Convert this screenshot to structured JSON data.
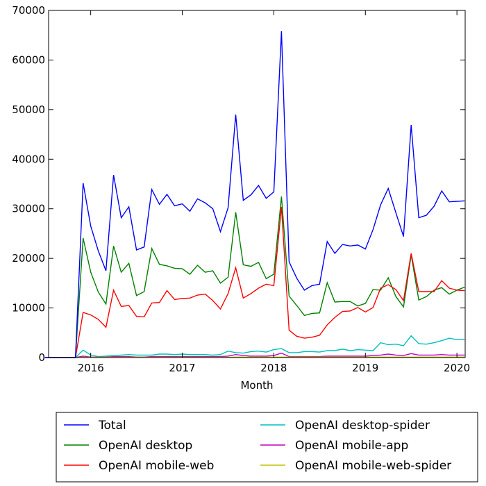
{
  "chart_data": {
    "type": "line",
    "title": "",
    "xlabel": "Month",
    "ylabel": "",
    "xlim": [
      2015.54,
      2020.09
    ],
    "ylim": [
      0,
      70000
    ],
    "xticks": [
      2016,
      2017,
      2018,
      2019,
      2020
    ],
    "xtick_labels": [
      "2016",
      "2017",
      "2018",
      "2019",
      "2020"
    ],
    "yticks": [
      0,
      10000,
      20000,
      30000,
      40000,
      50000,
      60000,
      70000
    ],
    "ytick_labels": [
      "0",
      "10000",
      "20000",
      "30000",
      "40000",
      "50000",
      "60000",
      "70000"
    ],
    "grid": false,
    "legend_position": "below",
    "x": [
      "2015-07",
      "2015-08",
      "2015-09",
      "2015-10",
      "2015-11",
      "2015-12",
      "2016-01",
      "2016-02",
      "2016-03",
      "2016-04",
      "2016-05",
      "2016-06",
      "2016-07",
      "2016-08",
      "2016-09",
      "2016-10",
      "2016-11",
      "2016-12",
      "2017-01",
      "2017-02",
      "2017-03",
      "2017-04",
      "2017-05",
      "2017-06",
      "2017-07",
      "2017-08",
      "2017-09",
      "2017-10",
      "2017-11",
      "2017-12",
      "2018-01",
      "2018-02",
      "2018-03",
      "2018-04",
      "2018-05",
      "2018-06",
      "2018-07",
      "2018-08",
      "2018-09",
      "2018-10",
      "2018-11",
      "2018-12",
      "2019-01",
      "2019-02",
      "2019-03",
      "2019-04",
      "2019-05",
      "2019-06",
      "2019-07",
      "2019-08",
      "2019-09",
      "2019-10",
      "2019-11",
      "2019-12",
      "2020-01",
      "2020-02"
    ],
    "series": [
      {
        "name": "Total",
        "color": "#0000ff",
        "values": [
          0,
          0,
          0,
          0,
          0,
          35200,
          26500,
          21500,
          17500,
          36800,
          28200,
          30400,
          21700,
          22300,
          33900,
          30900,
          32900,
          30600,
          31000,
          29500,
          32000,
          31200,
          30000,
          25400,
          30200,
          49000,
          31700,
          32800,
          34700,
          32100,
          33400,
          65800,
          19300,
          16000,
          13600,
          14500,
          14800,
          23400,
          21000,
          22800,
          22500,
          22700,
          21900,
          25800,
          30800,
          34100,
          29200,
          24400,
          46900,
          28200,
          28700,
          30500,
          33600,
          31400,
          31500,
          31600
        ]
      },
      {
        "name": "OpenAI desktop",
        "color": "#008000",
        "values": [
          0,
          0,
          0,
          0,
          0,
          24100,
          17200,
          13200,
          10800,
          22500,
          17200,
          19000,
          12500,
          13300,
          22000,
          18800,
          18500,
          18000,
          17900,
          16800,
          18600,
          17200,
          17500,
          15000,
          16200,
          29300,
          18700,
          18400,
          19200,
          15900,
          16800,
          32500,
          12400,
          10500,
          8500,
          8900,
          9000,
          15100,
          11200,
          11300,
          11300,
          10400,
          10900,
          13700,
          13600,
          16100,
          12300,
          10200,
          20700,
          11600,
          12300,
          13600,
          14100,
          12800,
          13600,
          14200
        ]
      },
      {
        "name": "OpenAI mobile-web",
        "color": "#ff0000",
        "values": [
          0,
          0,
          0,
          0,
          0,
          9100,
          8600,
          7700,
          6100,
          13600,
          10300,
          10500,
          8300,
          8200,
          11000,
          11100,
          13500,
          11700,
          11900,
          12000,
          12600,
          12800,
          11500,
          9800,
          12900,
          18100,
          12000,
          12900,
          14000,
          14800,
          14500,
          30400,
          5500,
          4300,
          3900,
          4100,
          4500,
          6600,
          8100,
          9300,
          9400,
          10100,
          9200,
          10100,
          14000,
          14700,
          13700,
          11500,
          21000,
          13300,
          13300,
          13300,
          15500,
          14000,
          13600,
          13500
        ]
      },
      {
        "name": "OpenAI desktop-spider",
        "color": "#00bfbf",
        "values": [
          0,
          0,
          0,
          0,
          0,
          1500,
          500,
          200,
          300,
          400,
          500,
          600,
          500,
          500,
          500,
          700,
          700,
          600,
          700,
          600,
          600,
          600,
          500,
          600,
          1300,
          1000,
          900,
          1200,
          1300,
          1100,
          1600,
          1800,
          1000,
          1000,
          1200,
          1200,
          1100,
          1400,
          1400,
          1700,
          1400,
          1600,
          1500,
          1400,
          3000,
          2600,
          2700,
          2400,
          4400,
          2800,
          2700,
          3000,
          3400,
          3900,
          3600,
          3600
        ]
      },
      {
        "name": "OpenAI mobile-app",
        "color": "#bf00bf",
        "values": [
          0,
          0,
          0,
          0,
          0,
          300,
          100,
          100,
          100,
          200,
          200,
          200,
          100,
          100,
          200,
          200,
          200,
          200,
          200,
          200,
          200,
          200,
          200,
          200,
          300,
          600,
          400,
          300,
          300,
          300,
          400,
          900,
          200,
          200,
          200,
          200,
          200,
          300,
          300,
          300,
          300,
          300,
          300,
          400,
          500,
          700,
          500,
          400,
          800,
          500,
          500,
          500,
          600,
          500,
          500,
          500
        ]
      },
      {
        "name": "OpenAI mobile-web-spider",
        "color": "#bfbf00",
        "values": [
          0,
          0,
          0,
          0,
          0,
          50,
          50,
          50,
          50,
          50,
          50,
          50,
          50,
          50,
          50,
          50,
          50,
          50,
          50,
          50,
          50,
          50,
          50,
          50,
          50,
          100,
          100,
          100,
          100,
          100,
          100,
          100,
          100,
          100,
          100,
          100,
          100,
          100,
          100,
          100,
          100,
          100,
          100,
          100,
          100,
          100,
          100,
          100,
          100,
          100,
          100,
          100,
          100,
          100,
          100,
          100
        ]
      }
    ]
  }
}
